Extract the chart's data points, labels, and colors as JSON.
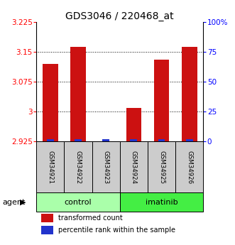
{
  "title": "GDS3046 / 220468_at",
  "samples": [
    "GSM34921",
    "GSM34922",
    "GSM34923",
    "GSM34924",
    "GSM34925",
    "GSM34926"
  ],
  "transformed_count": [
    3.12,
    3.163,
    2.925,
    3.01,
    3.13,
    3.162
  ],
  "percentile_rank_pct": [
    2,
    3,
    1,
    2,
    3,
    3
  ],
  "ylim_left": [
    2.925,
    3.225
  ],
  "yticks_left": [
    2.925,
    3.0,
    3.075,
    3.15,
    3.225
  ],
  "ytick_labels_left": [
    "2.925",
    "3",
    "3.075",
    "3.15",
    "3.225"
  ],
  "ylim_right": [
    0,
    100
  ],
  "yticks_right": [
    0,
    25,
    50,
    75,
    100
  ],
  "ytick_labels_right": [
    "0",
    "25",
    "50",
    "75",
    "100%"
  ],
  "bar_color_red": "#cc1111",
  "bar_color_blue": "#2233cc",
  "bar_width": 0.55,
  "blue_bar_width": 0.25,
  "sample_box_color": "#cccccc",
  "group_defs": [
    {
      "start": 0,
      "end": 2,
      "label": "control",
      "color": "#aaffaa"
    },
    {
      "start": 3,
      "end": 5,
      "label": "imatinib",
      "color": "#44ee44"
    }
  ],
  "agent_label": "agent",
  "legend_red": "transformed count",
  "legend_blue": "percentile rank within the sample",
  "title_fontsize": 10,
  "tick_fontsize": 7.5,
  "sample_fontsize": 6.2,
  "group_fontsize": 8,
  "legend_fontsize": 7
}
